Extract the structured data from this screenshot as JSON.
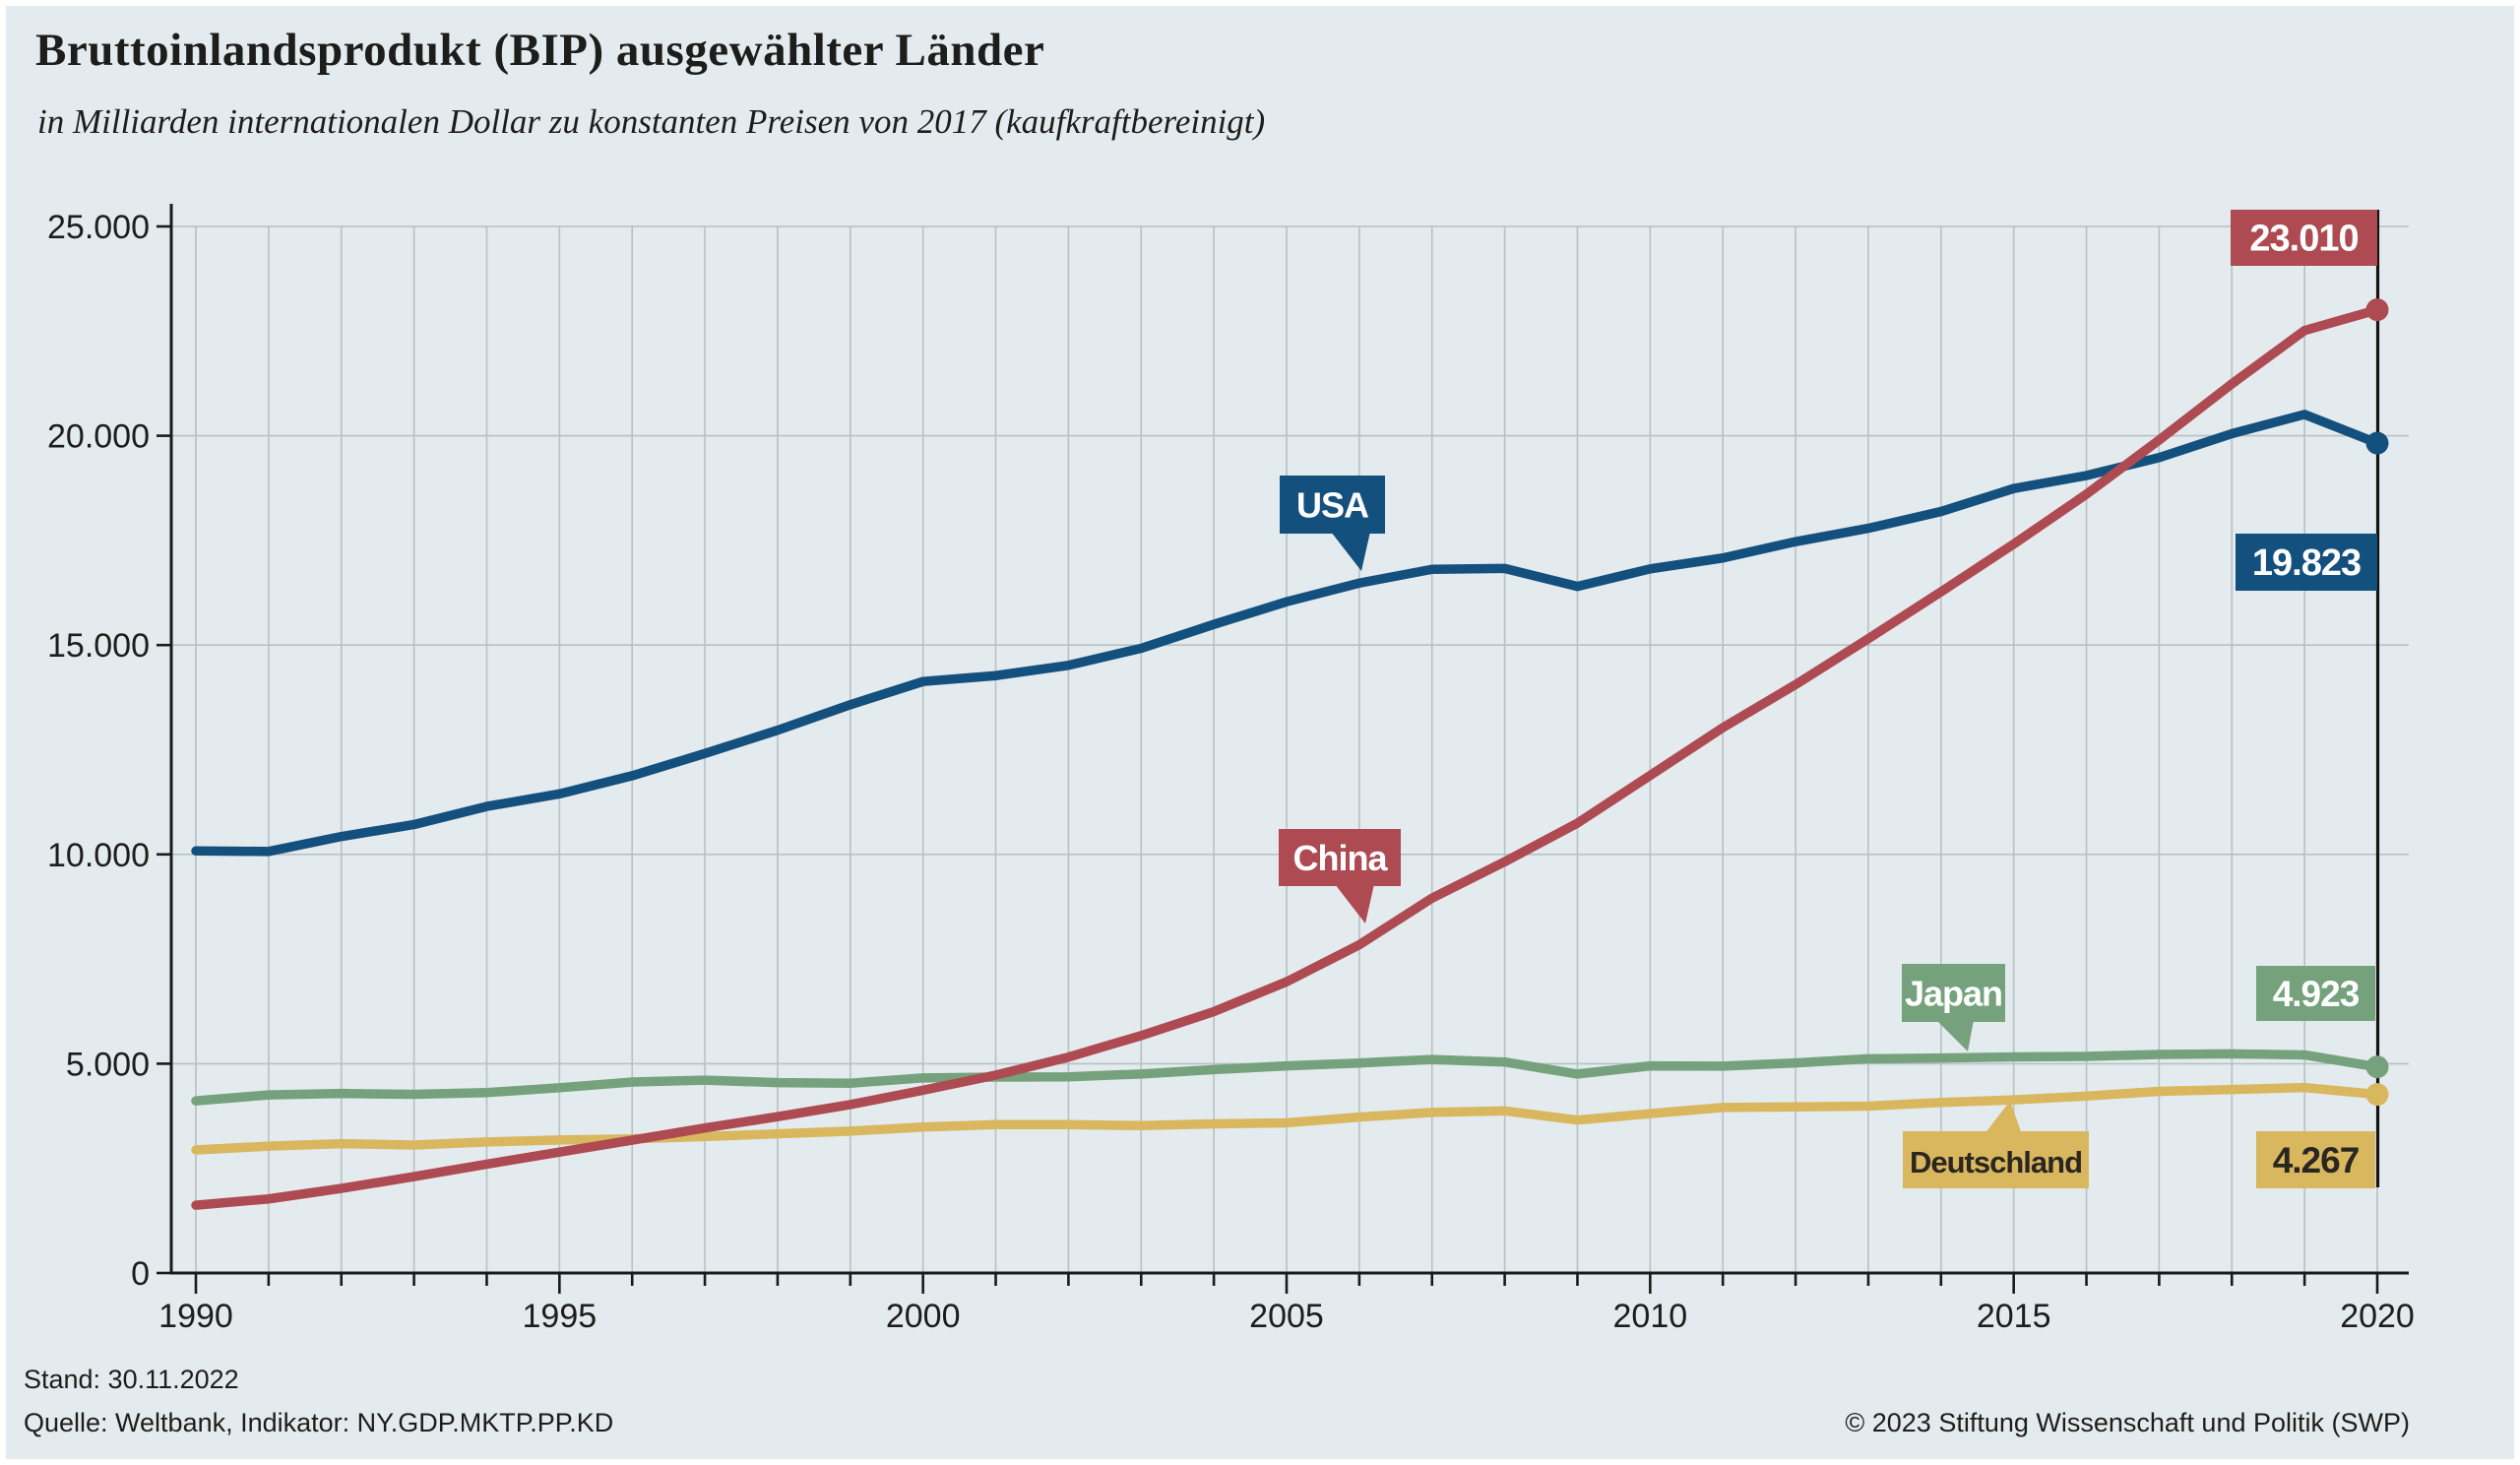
{
  "header": {
    "title": "Bruttoinlandsprodukt (BIP) ausgewählter Länder",
    "subtitle": "in Milliarden internationalen Dollar zu konstanten Preisen von 2017 (kaufkraftbereinigt)"
  },
  "footer": {
    "stand": "Stand: 30.11.2022",
    "quelle": "Quelle: Weltbank, Indikator: NY.GDP.MKTP.PP.KD",
    "copyright": "© 2023 Stiftung Wissenschaft und Politik (SWP)"
  },
  "chart_data": {
    "type": "line",
    "title": "Bruttoinlandsprodukt (BIP) ausgewählter Länder",
    "subtitle": "in Milliarden internationalen Dollar zu konstanten Preisen von 2017 (kaufkraftbereinigt)",
    "xlabel": "",
    "ylabel": "",
    "grid": "on",
    "ylim": [
      0,
      25000
    ],
    "xlim": [
      1990,
      2020
    ],
    "yticks": [
      "0",
      "5.000",
      "10.000",
      "15.000",
      "20.000",
      "25.000"
    ],
    "ytick_values": [
      0,
      5000,
      10000,
      15000,
      20000,
      25000
    ],
    "xticks": [
      "1990",
      "1995",
      "2000",
      "2005",
      "2010",
      "2015",
      "2020"
    ],
    "xtick_values": [
      1990,
      1995,
      2000,
      2005,
      2010,
      2015,
      2020
    ],
    "end_marker_year": 2020,
    "x": [
      1990,
      1991,
      1992,
      1993,
      1994,
      1995,
      1996,
      1997,
      1998,
      1999,
      2000,
      2001,
      2002,
      2003,
      2004,
      2005,
      2006,
      2007,
      2008,
      2009,
      2010,
      2011,
      2012,
      2013,
      2014,
      2015,
      2016,
      2017,
      2018,
      2019,
      2020
    ],
    "series": [
      {
        "name": "USA",
        "color": "#14507d",
        "label_text_color": "#ffffff",
        "end_label": "19.823",
        "end_value": 19823,
        "values": [
          10083,
          10070,
          10427,
          10713,
          11145,
          11445,
          11879,
          12410,
          12966,
          13575,
          14130,
          14270,
          14516,
          14923,
          15494,
          16035,
          16480,
          16810,
          16830,
          16400,
          16820,
          17080,
          17470,
          17790,
          18190,
          18740,
          19050,
          19480,
          20050,
          20510,
          19823
        ]
      },
      {
        "name": "China",
        "color": "#ae4a51",
        "label_text_color": "#ffffff",
        "end_label": "23.010",
        "end_value": 23010,
        "values": [
          1619,
          1770,
          2021,
          2302,
          2601,
          2887,
          3173,
          3465,
          3735,
          4023,
          4365,
          4727,
          5157,
          5672,
          6245,
          6957,
          7841,
          8955,
          9824,
          10747,
          11886,
          13027,
          14056,
          15152,
          16273,
          17412,
          18604,
          19897,
          21240,
          22515,
          23010
        ]
      },
      {
        "name": "Japan",
        "color": "#75a27c",
        "label_text_color": "#ffffff",
        "end_label": "4.923",
        "end_value": 4923,
        "values": [
          4113,
          4254,
          4288,
          4268,
          4310,
          4426,
          4562,
          4608,
          4548,
          4534,
          4661,
          4680,
          4685,
          4755,
          4860,
          4947,
          5016,
          5101,
          5040,
          4753,
          4948,
          4943,
          5017,
          5117,
          5137,
          5162,
          5175,
          5220,
          5235,
          5210,
          4923
        ]
      },
      {
        "name": "Deutschland",
        "color": "#d9b75f",
        "label_text_color": "#2a2620",
        "end_label": "4.267",
        "end_value": 4267,
        "values": [
          2940,
          3031,
          3089,
          3058,
          3131,
          3178,
          3203,
          3261,
          3326,
          3389,
          3487,
          3546,
          3546,
          3521,
          3563,
          3588,
          3724,
          3836,
          3874,
          3653,
          3806,
          3954,
          3970,
          3986,
          4074,
          4135,
          4226,
          4340,
          4383,
          4431,
          4267
        ]
      }
    ]
  }
}
